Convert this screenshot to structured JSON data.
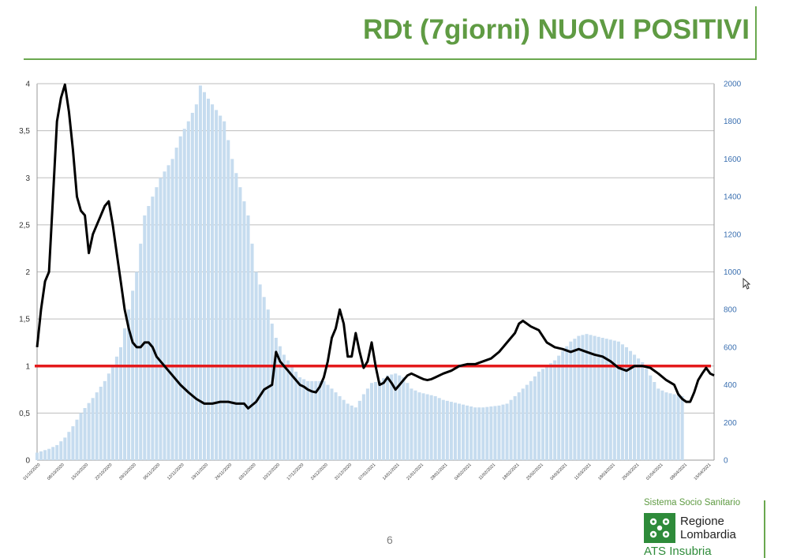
{
  "slide": {
    "title": "RDt (7giorni) NUOVI POSITIVI",
    "page_number": "6"
  },
  "logo": {
    "system": "Sistema Socio Sanitario",
    "region_line1": "Regione",
    "region_line2": "Lombardia",
    "ats": "ATS Insubria",
    "icon": "regione-lombardia-cross-logo"
  },
  "colors": {
    "title": "#5f9b43",
    "bars": "#c6dcef",
    "rdt_line": "#000000",
    "threshold": "#e41a1c",
    "left_axis_text": "#333333",
    "right_axis_text": "#3a6fb0"
  },
  "chart_data": {
    "type": "bar+line",
    "title": "",
    "xlabel": "",
    "ylabel": "",
    "left_axis": {
      "ylim": [
        0,
        4
      ],
      "ticks": [
        "0",
        "0,5",
        "1",
        "1,5",
        "2",
        "2,5",
        "3",
        "3,5",
        "4"
      ]
    },
    "right_axis": {
      "ylim": [
        0,
        2000
      ],
      "ticks": [
        "0",
        "200",
        "400",
        "600",
        "800",
        "1000",
        "1200",
        "1400",
        "1600",
        "1800",
        "2000"
      ]
    },
    "x_tick_labels": [
      "01/10/2020",
      "08/10/2020",
      "15/10/2020",
      "22/10/2020",
      "29/10/2020",
      "05/11/2020",
      "12/11/2020",
      "19/11/2020",
      "26/11/2020",
      "03/12/2020",
      "10/12/2020",
      "17/12/2020",
      "24/12/2020",
      "31/12/2020",
      "07/01/2021",
      "14/01/2021",
      "21/01/2021",
      "28/01/2021",
      "04/02/2021",
      "11/02/2021",
      "18/02/2021",
      "25/02/2021",
      "04/03/2021",
      "11/03/2021",
      "18/03/2021",
      "25/03/2021",
      "01/04/2021",
      "08/04/2021",
      "15/04/2021"
    ],
    "grid": true,
    "threshold": {
      "axis": "left",
      "value": 1
    },
    "bar_series": {
      "axis": "right",
      "points": [
        [
          0,
          40
        ],
        [
          3,
          60
        ],
        [
          5,
          80
        ],
        [
          7,
          120
        ],
        [
          9,
          180
        ],
        [
          11,
          250
        ],
        [
          14,
          330
        ],
        [
          17,
          420
        ],
        [
          19,
          500
        ],
        [
          21,
          600
        ],
        [
          23,
          800
        ],
        [
          25,
          1000
        ],
        [
          27,
          1300
        ],
        [
          29,
          1400
        ],
        [
          31,
          1500
        ],
        [
          34,
          1600
        ],
        [
          36,
          1720
        ],
        [
          38,
          1800
        ],
        [
          40,
          1890
        ],
        [
          41,
          1990
        ],
        [
          43,
          1920
        ],
        [
          45,
          1860
        ],
        [
          47,
          1800
        ],
        [
          49,
          1600
        ],
        [
          51,
          1450
        ],
        [
          53,
          1300
        ],
        [
          55,
          1000
        ],
        [
          58,
          800
        ],
        [
          60,
          650
        ],
        [
          62,
          560
        ],
        [
          64,
          500
        ],
        [
          66,
          440
        ],
        [
          68,
          420
        ],
        [
          70,
          420
        ],
        [
          72,
          420
        ],
        [
          74,
          380
        ],
        [
          76,
          340
        ],
        [
          78,
          300
        ],
        [
          80,
          280
        ],
        [
          82,
          350
        ],
        [
          84,
          410
        ],
        [
          86,
          420
        ],
        [
          88,
          450
        ],
        [
          90,
          460
        ],
        [
          92,
          440
        ],
        [
          94,
          380
        ],
        [
          96,
          360
        ],
        [
          98,
          350
        ],
        [
          100,
          340
        ],
        [
          102,
          320
        ],
        [
          104,
          310
        ],
        [
          106,
          300
        ],
        [
          108,
          290
        ],
        [
          110,
          280
        ],
        [
          112,
          280
        ],
        [
          114,
          285
        ],
        [
          116,
          290
        ],
        [
          118,
          300
        ],
        [
          120,
          340
        ],
        [
          122,
          380
        ],
        [
          124,
          420
        ],
        [
          126,
          470
        ],
        [
          128,
          500
        ],
        [
          130,
          530
        ],
        [
          132,
          580
        ],
        [
          134,
          630
        ],
        [
          136,
          660
        ],
        [
          138,
          670
        ],
        [
          140,
          660
        ],
        [
          142,
          650
        ],
        [
          144,
          640
        ],
        [
          146,
          630
        ],
        [
          148,
          600
        ],
        [
          150,
          560
        ],
        [
          152,
          520
        ],
        [
          154,
          450
        ],
        [
          156,
          380
        ],
        [
          158,
          360
        ],
        [
          160,
          350
        ],
        [
          162,
          340
        ]
      ]
    },
    "line_series": {
      "axis": "left",
      "points": [
        [
          0,
          1.2
        ],
        [
          1,
          1.6
        ],
        [
          2,
          1.9
        ],
        [
          3,
          2.0
        ],
        [
          4,
          2.8
        ],
        [
          5,
          3.6
        ],
        [
          6,
          3.85
        ],
        [
          7,
          3.99
        ],
        [
          8,
          3.7
        ],
        [
          9,
          3.3
        ],
        [
          10,
          2.8
        ],
        [
          11,
          2.65
        ],
        [
          12,
          2.6
        ],
        [
          13,
          2.2
        ],
        [
          14,
          2.4
        ],
        [
          15,
          2.5
        ],
        [
          16,
          2.6
        ],
        [
          17,
          2.7
        ],
        [
          18,
          2.75
        ],
        [
          19,
          2.5
        ],
        [
          20,
          2.2
        ],
        [
          21,
          1.9
        ],
        [
          22,
          1.6
        ],
        [
          23,
          1.4
        ],
        [
          24,
          1.25
        ],
        [
          25,
          1.2
        ],
        [
          26,
          1.2
        ],
        [
          27,
          1.25
        ],
        [
          28,
          1.25
        ],
        [
          29,
          1.2
        ],
        [
          30,
          1.1
        ],
        [
          32,
          1.0
        ],
        [
          34,
          0.9
        ],
        [
          36,
          0.8
        ],
        [
          38,
          0.72
        ],
        [
          40,
          0.65
        ],
        [
          42,
          0.6
        ],
        [
          44,
          0.6
        ],
        [
          46,
          0.62
        ],
        [
          48,
          0.62
        ],
        [
          50,
          0.6
        ],
        [
          52,
          0.6
        ],
        [
          53,
          0.55
        ],
        [
          55,
          0.62
        ],
        [
          57,
          0.75
        ],
        [
          59,
          0.8
        ],
        [
          60,
          1.15
        ],
        [
          61,
          1.05
        ],
        [
          62,
          1.0
        ],
        [
          63,
          0.95
        ],
        [
          64,
          0.9
        ],
        [
          65,
          0.85
        ],
        [
          66,
          0.8
        ],
        [
          67,
          0.78
        ],
        [
          68,
          0.75
        ],
        [
          69,
          0.73
        ],
        [
          70,
          0.72
        ],
        [
          71,
          0.78
        ],
        [
          72,
          0.88
        ],
        [
          73,
          1.05
        ],
        [
          74,
          1.3
        ],
        [
          75,
          1.4
        ],
        [
          76,
          1.6
        ],
        [
          77,
          1.45
        ],
        [
          78,
          1.1
        ],
        [
          79,
          1.1
        ],
        [
          80,
          1.35
        ],
        [
          81,
          1.15
        ],
        [
          82,
          0.98
        ],
        [
          83,
          1.05
        ],
        [
          84,
          1.25
        ],
        [
          85,
          1.0
        ],
        [
          86,
          0.8
        ],
        [
          87,
          0.82
        ],
        [
          88,
          0.88
        ],
        [
          89,
          0.82
        ],
        [
          90,
          0.75
        ],
        [
          91,
          0.8
        ],
        [
          92,
          0.85
        ],
        [
          93,
          0.9
        ],
        [
          94,
          0.92
        ],
        [
          95,
          0.9
        ],
        [
          96,
          0.88
        ],
        [
          97,
          0.86
        ],
        [
          98,
          0.85
        ],
        [
          99,
          0.86
        ],
        [
          100,
          0.88
        ],
        [
          102,
          0.92
        ],
        [
          104,
          0.95
        ],
        [
          106,
          1.0
        ],
        [
          108,
          1.02
        ],
        [
          110,
          1.02
        ],
        [
          112,
          1.05
        ],
        [
          114,
          1.08
        ],
        [
          116,
          1.15
        ],
        [
          118,
          1.25
        ],
        [
          120,
          1.35
        ],
        [
          121,
          1.45
        ],
        [
          122,
          1.48
        ],
        [
          124,
          1.42
        ],
        [
          126,
          1.38
        ],
        [
          128,
          1.25
        ],
        [
          130,
          1.2
        ],
        [
          132,
          1.18
        ],
        [
          134,
          1.15
        ],
        [
          136,
          1.18
        ],
        [
          138,
          1.15
        ],
        [
          140,
          1.12
        ],
        [
          142,
          1.1
        ],
        [
          144,
          1.05
        ],
        [
          146,
          0.98
        ],
        [
          148,
          0.95
        ],
        [
          150,
          1.0
        ],
        [
          152,
          1.0
        ],
        [
          154,
          0.98
        ],
        [
          156,
          0.92
        ],
        [
          158,
          0.85
        ],
        [
          160,
          0.8
        ],
        [
          161,
          0.7
        ],
        [
          162,
          0.65
        ],
        [
          163,
          0.62
        ],
        [
          164,
          0.62
        ],
        [
          165,
          0.72
        ],
        [
          166,
          0.85
        ],
        [
          167,
          0.92
        ],
        [
          168,
          0.98
        ],
        [
          169,
          0.92
        ],
        [
          170,
          0.9
        ]
      ]
    }
  }
}
